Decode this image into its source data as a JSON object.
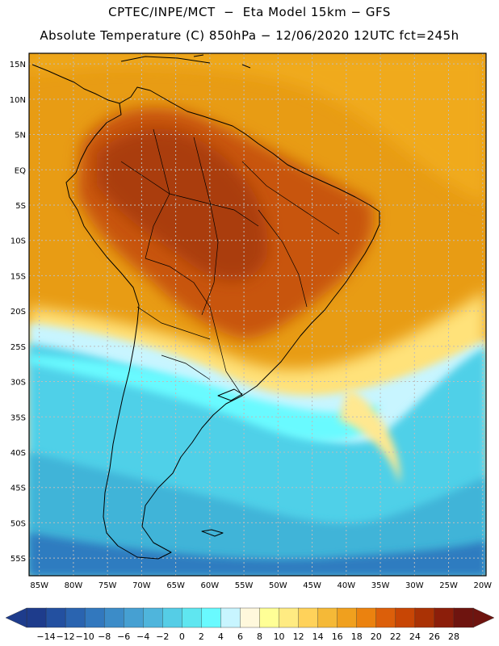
{
  "header": {
    "line1": "CPTEC/INPE/MCT  −  Eta Model 15km − GFS",
    "line2": "Absolute Temperature (C) 850hPa − 12/06/2020 12UTC fct=245h"
  },
  "axes": {
    "lat_labels": [
      "15N",
      "10N",
      "5N",
      "EQ",
      "5S",
      "10S",
      "15S",
      "20S",
      "25S",
      "30S",
      "35S",
      "40S",
      "45S",
      "50S",
      "55S"
    ],
    "lon_labels": [
      "85W",
      "80W",
      "75W",
      "70W",
      "65W",
      "60W",
      "55W",
      "50W",
      "45W",
      "40W",
      "35W",
      "30W",
      "25W",
      "20W"
    ],
    "lat_values": [
      15,
      10,
      5,
      0,
      -5,
      -10,
      -15,
      -20,
      -25,
      -30,
      -35,
      -40,
      -45,
      -50,
      -55
    ],
    "lon_values": [
      -85,
      -80,
      -75,
      -70,
      -65,
      -60,
      -55,
      -50,
      -45,
      -40,
      -35,
      -30,
      -25,
      -20
    ],
    "lat_range": [
      -57.5,
      16.5
    ],
    "lon_range": [
      -86.5,
      -19.5
    ]
  },
  "colorbar": {
    "labels": [
      "−14",
      "−12",
      "−10",
      "−8",
      "−6",
      "−4",
      "−2",
      "0",
      "2",
      "4",
      "6",
      "8",
      "10",
      "12",
      "14",
      "16",
      "18",
      "20",
      "22",
      "24",
      "26",
      "28"
    ],
    "colors": [
      "#1e3c8c",
      "#2350a0",
      "#2a64b0",
      "#3278be",
      "#3c8cc8",
      "#46a0d2",
      "#4fb5dc",
      "#55cde6",
      "#5fe6f0",
      "#69faff",
      "#c8f5ff",
      "#fff8dc",
      "#ffff96",
      "#ffeb82",
      "#ffd25a",
      "#f5b937",
      "#f0a01e",
      "#eb820f",
      "#dc5f0a",
      "#c84605",
      "#aa3205",
      "#8c1e0a",
      "#6e140f"
    ],
    "low_end_color": "#1e3c8c",
    "high_end_color": "#6e140f"
  },
  "map": {
    "ocean_base_color": "#e89c14",
    "land_hot_color": "#c8550a",
    "land_core_color": "#aa3c0a",
    "south_cold_color": "#4fd0e8",
    "south_deep_color": "#40b4d8",
    "far_south_color": "#2e7cc0"
  }
}
